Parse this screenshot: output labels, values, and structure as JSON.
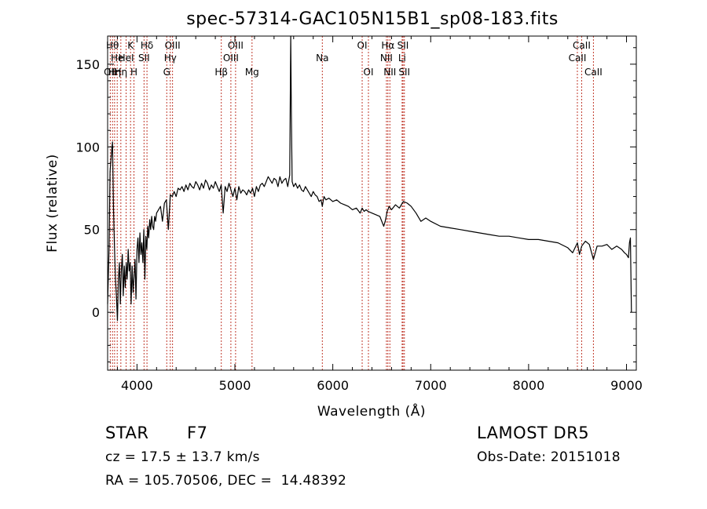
{
  "chart_data": {
    "type": "line",
    "title": "spec-57314-GAC105N15B1_sp08-183.fits",
    "xlabel": "Wavelength (Å)",
    "ylabel": "Flux (relative)",
    "xlim": [
      3700,
      9100
    ],
    "ylim": [
      -35,
      167
    ],
    "xticks": [
      4000,
      5000,
      6000,
      7000,
      8000,
      9000
    ],
    "yticks": [
      0,
      50,
      100,
      150
    ],
    "grid": false,
    "series": [
      {
        "color": "#000000",
        "x": [
          3700,
          3715,
          3725,
          3740,
          3750,
          3760,
          3770,
          3780,
          3790,
          3800,
          3810,
          3820,
          3830,
          3840,
          3850,
          3860,
          3870,
          3880,
          3890,
          3900,
          3910,
          3920,
          3930,
          3940,
          3950,
          3960,
          3970,
          3980,
          3990,
          4000,
          4010,
          4020,
          4030,
          4040,
          4050,
          4060,
          4070,
          4080,
          4090,
          4100,
          4110,
          4120,
          4130,
          4140,
          4150,
          4160,
          4170,
          4180,
          4190,
          4200,
          4220,
          4240,
          4260,
          4280,
          4300,
          4320,
          4340,
          4360,
          4380,
          4400,
          4420,
          4440,
          4460,
          4480,
          4500,
          4520,
          4540,
          4560,
          4580,
          4600,
          4620,
          4640,
          4660,
          4680,
          4700,
          4720,
          4740,
          4760,
          4780,
          4800,
          4820,
          4840,
          4860,
          4880,
          4900,
          4920,
          4940,
          4960,
          4980,
          5000,
          5020,
          5040,
          5060,
          5080,
          5100,
          5120,
          5140,
          5160,
          5180,
          5200,
          5220,
          5240,
          5260,
          5280,
          5300,
          5320,
          5340,
          5360,
          5380,
          5400,
          5420,
          5440,
          5460,
          5480,
          5500,
          5520,
          5540,
          5560,
          5570,
          5577,
          5585,
          5600,
          5620,
          5640,
          5660,
          5680,
          5700,
          5720,
          5740,
          5760,
          5780,
          5800,
          5820,
          5840,
          5860,
          5880,
          5893,
          5910,
          5930,
          5960,
          6000,
          6040,
          6080,
          6120,
          6160,
          6200,
          6240,
          6280,
          6300,
          6320,
          6340,
          6360,
          6400,
          6440,
          6480,
          6520,
          6540,
          6555,
          6563,
          6575,
          6600,
          6640,
          6680,
          6720,
          6760,
          6800,
          6850,
          6900,
          6950,
          7000,
          7100,
          7200,
          7300,
          7400,
          7500,
          7600,
          7700,
          7800,
          7900,
          8000,
          8100,
          8200,
          8300,
          8400,
          8450,
          8498,
          8520,
          8542,
          8580,
          8620,
          8662,
          8700,
          8750,
          8800,
          8850,
          8900,
          8950,
          8980,
          9000,
          9020,
          9030,
          9040,
          9050
        ],
        "y": [
          5,
          40,
          85,
          97,
          103,
          62,
          40,
          20,
          10,
          -5,
          20,
          30,
          5,
          25,
          35,
          10,
          28,
          15,
          30,
          20,
          38,
          25,
          30,
          5,
          28,
          12,
          22,
          32,
          8,
          38,
          45,
          30,
          48,
          35,
          42,
          30,
          50,
          20,
          46,
          38,
          52,
          45,
          56,
          50,
          58,
          52,
          50,
          58,
          55,
          60,
          62,
          64,
          55,
          66,
          68,
          50,
          71,
          70,
          73,
          70,
          75,
          74,
          76,
          73,
          77,
          74,
          78,
          76,
          75,
          79,
          77,
          74,
          78,
          75,
          80,
          78,
          74,
          77,
          75,
          79,
          76,
          73,
          77,
          60,
          76,
          73,
          78,
          74,
          70,
          75,
          68,
          76,
          72,
          74,
          73,
          71,
          74,
          72,
          75,
          70,
          76,
          73,
          77,
          78,
          76,
          79,
          82,
          80,
          78,
          81,
          80,
          76,
          82,
          78,
          80,
          81,
          76,
          83,
          167,
          120,
          79,
          76,
          78,
          75,
          77,
          74,
          73,
          76,
          74,
          72,
          70,
          73,
          71,
          70,
          67,
          68,
          64,
          70,
          68,
          69,
          67,
          68,
          66,
          65,
          64,
          62,
          63,
          60,
          63,
          61,
          62,
          61,
          60,
          59,
          58,
          52,
          56,
          61,
          62,
          64,
          62,
          65,
          63,
          67,
          66,
          64,
          60,
          55,
          57,
          55,
          52,
          51,
          50,
          49,
          48,
          47,
          46,
          46,
          45,
          44,
          44,
          43,
          42,
          39,
          36,
          42,
          35,
          40,
          43,
          41,
          32,
          40,
          40,
          41,
          38,
          40,
          38,
          36,
          35,
          33,
          42,
          45,
          0
        ]
      }
    ]
  },
  "lines": [
    {
      "wl": 3727,
      "label": "OII",
      "row": 3
    },
    {
      "wl": 3750,
      "label": "Hθ",
      "row": 1
    },
    {
      "wl": 3771,
      "label": "Hη",
      "row": 3
    },
    {
      "wl": 3798,
      "label": "He",
      "row": 2
    },
    {
      "wl": 3835,
      "label": "Hη",
      "row": 3
    },
    {
      "wl": 3889,
      "label": "HeI",
      "row": 2
    },
    {
      "wl": 3934,
      "label": "K",
      "row": 1
    },
    {
      "wl": 3969,
      "label": "H",
      "row": 3
    },
    {
      "wl": 4072,
      "label": "SII",
      "row": 2
    },
    {
      "wl": 4102,
      "label": "Hδ",
      "row": 1
    },
    {
      "wl": 4304,
      "label": "G",
      "row": 3
    },
    {
      "wl": 4340,
      "label": "Hγ",
      "row": 2
    },
    {
      "wl": 4363,
      "label": "OIII",
      "row": 1
    },
    {
      "wl": 4861,
      "label": "Hβ",
      "row": 3
    },
    {
      "wl": 4959,
      "label": "OIII",
      "row": 2
    },
    {
      "wl": 5007,
      "label": "OIII",
      "row": 1
    },
    {
      "wl": 5175,
      "label": "Mg",
      "row": 3
    },
    {
      "wl": 5893,
      "label": "Na",
      "row": 2
    },
    {
      "wl": 6300,
      "label": "OI",
      "row": 1
    },
    {
      "wl": 6364,
      "label": "OI",
      "row": 3
    },
    {
      "wl": 6548,
      "label": "NII",
      "row": 2
    },
    {
      "wl": 6563,
      "label": "Hα",
      "row": 1
    },
    {
      "wl": 6583,
      "label": "NII",
      "row": 3
    },
    {
      "wl": 6708,
      "label": "Li",
      "row": 2
    },
    {
      "wl": 6717,
      "label": "SII",
      "row": 1
    },
    {
      "wl": 6731,
      "label": "SII",
      "row": 3
    },
    {
      "wl": 8498,
      "label": "CaII",
      "row": 2
    },
    {
      "wl": 8542,
      "label": "CaII",
      "row": 1
    },
    {
      "wl": 8662,
      "label": "CaII",
      "row": 3
    }
  ],
  "info": {
    "class_label": "STAR",
    "subclass": "F7",
    "survey": "LAMOST DR5",
    "cz": "cz = 17.5 ± 13.7 km/s",
    "obs_date": "Obs-Date: 20151018",
    "coords": "RA = 105.70506, DEC =  14.48392"
  }
}
